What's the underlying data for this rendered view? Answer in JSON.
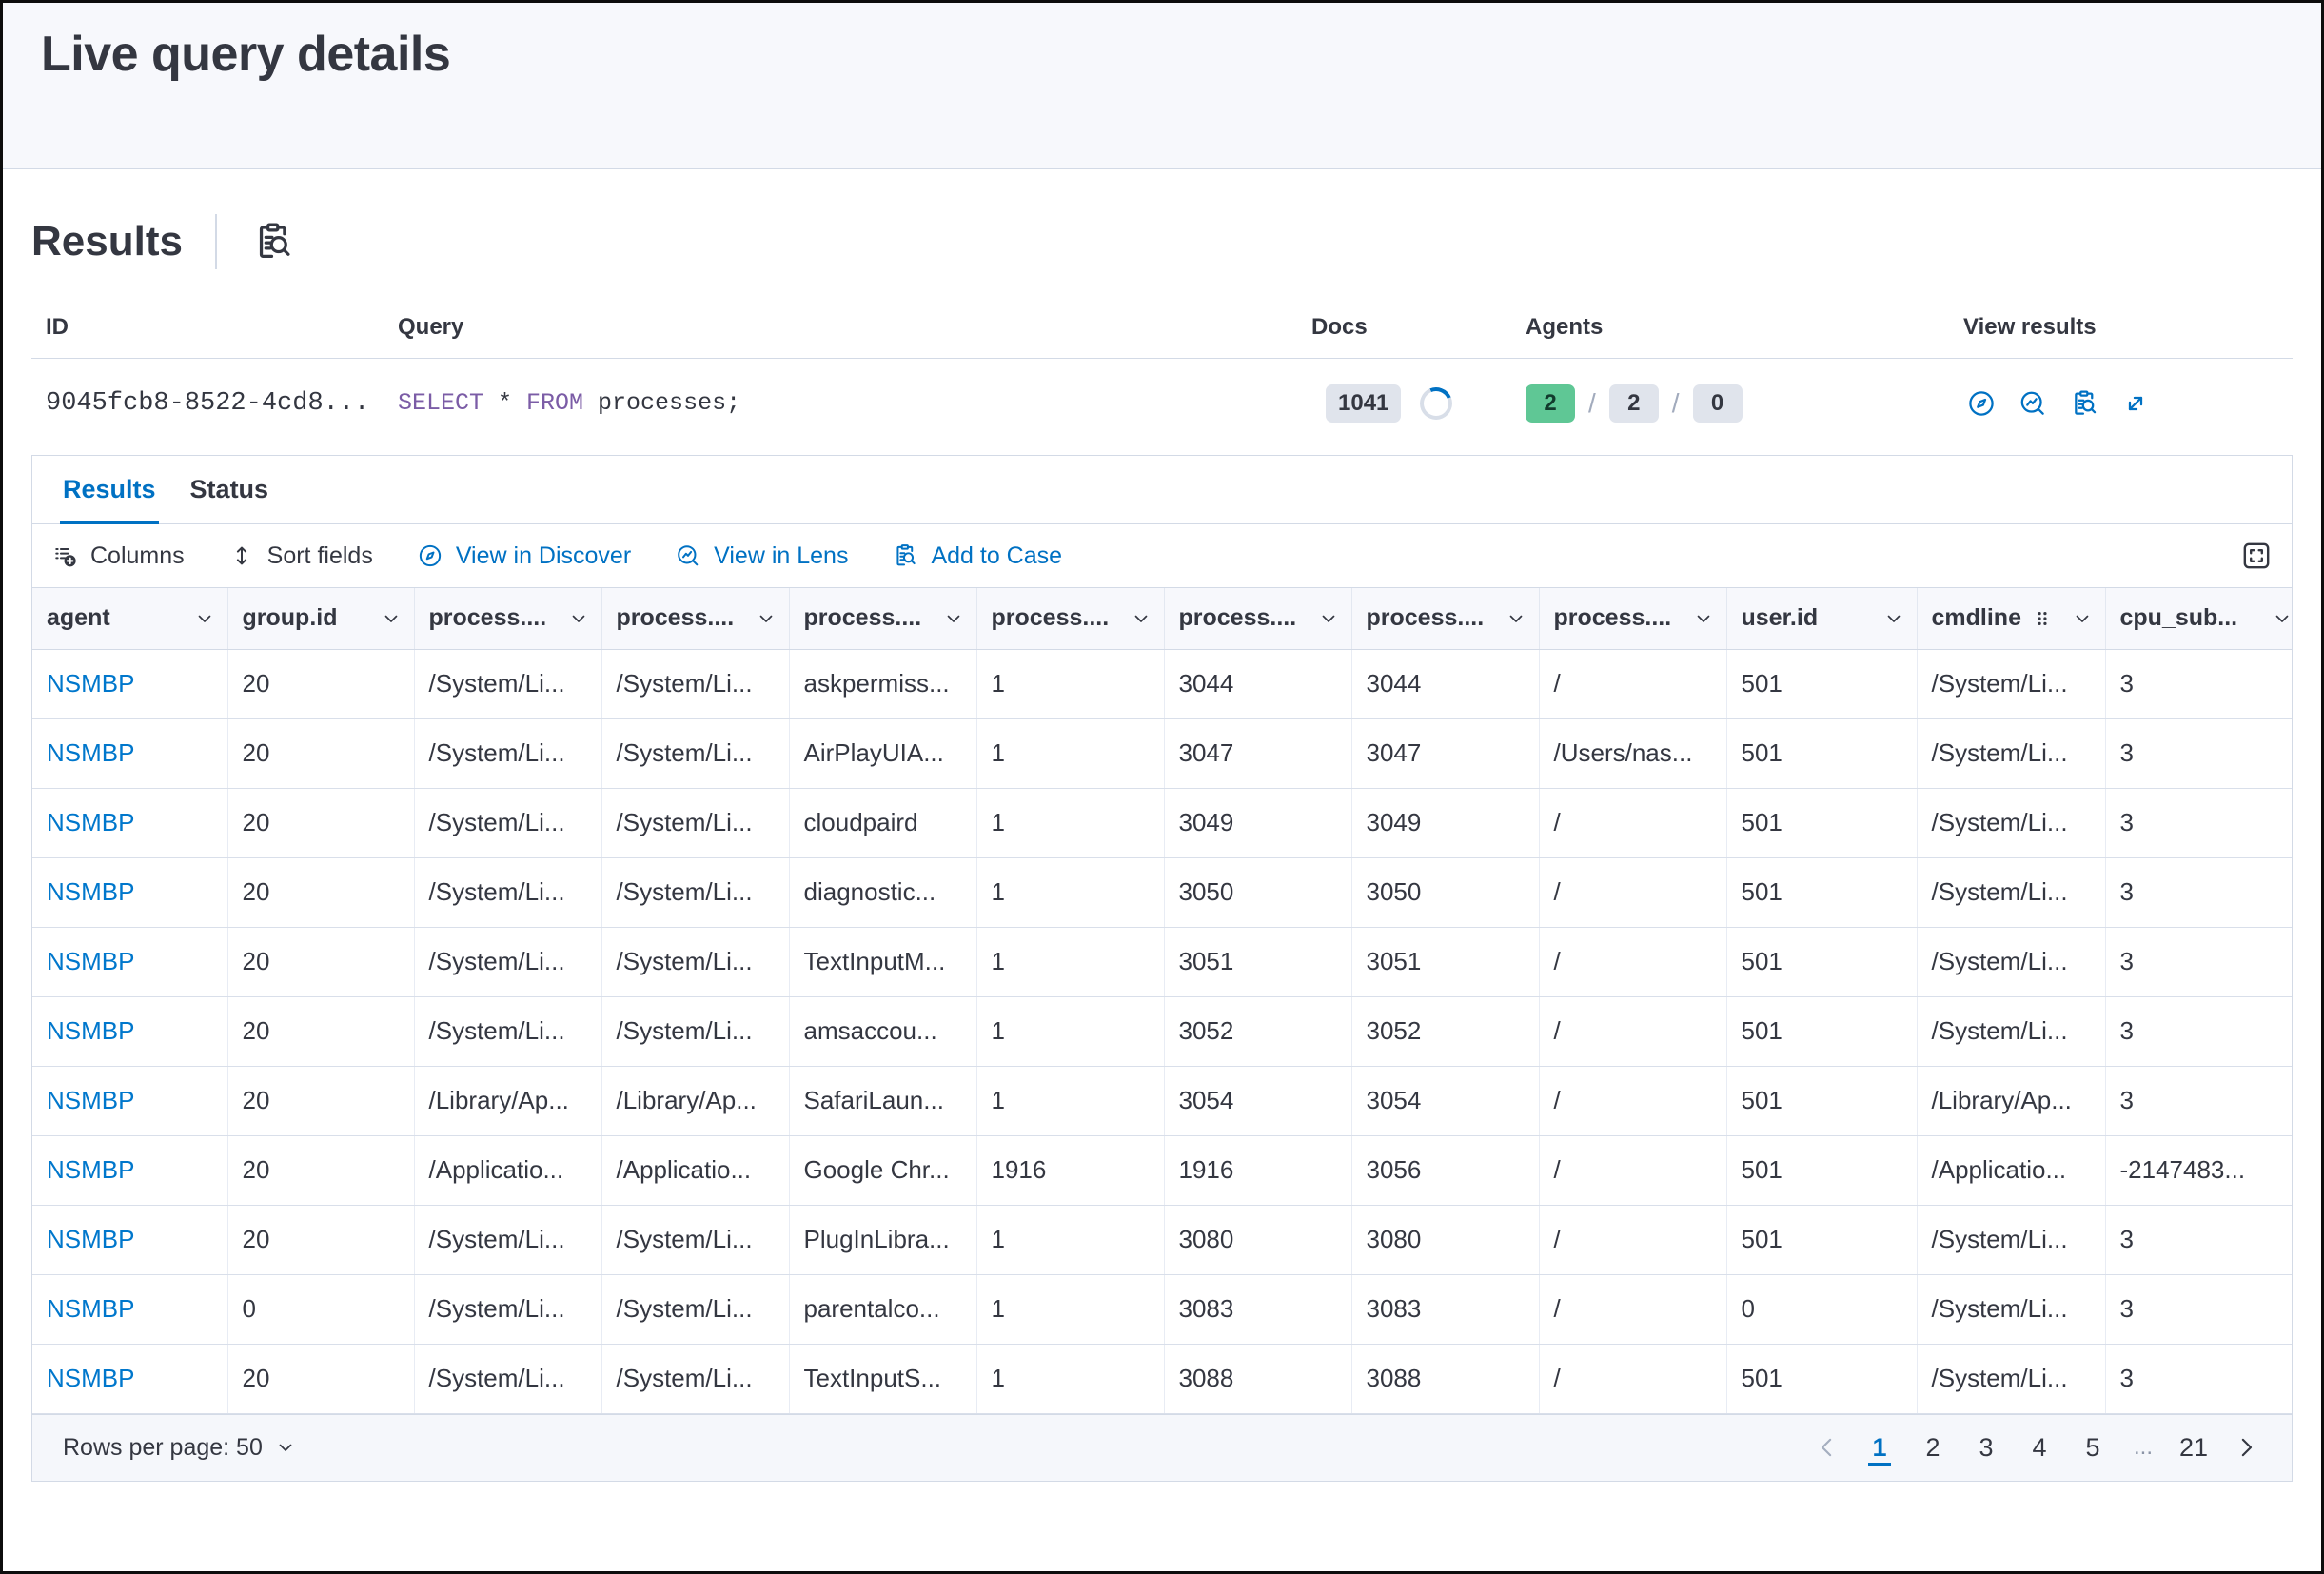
{
  "page": {
    "title": "Live query details"
  },
  "results_section": {
    "heading": "Results",
    "heading_icon": "inspect-icon",
    "summary_table": {
      "columns": [
        "ID",
        "Query",
        "Docs",
        "Agents",
        "View results"
      ],
      "row": {
        "id": "9045fcb8-8522-4cd8...",
        "query": {
          "kw1": "SELECT",
          "mid": " * ",
          "kw2": "FROM",
          "rest": " processes;"
        },
        "docs_count": "1041",
        "agents": {
          "success": "2",
          "total": "2",
          "failed": "0",
          "separator": "/"
        },
        "view_results_icons": [
          {
            "icon": "discover-compass",
            "name": "view-in-discover-button"
          },
          {
            "icon": "lens",
            "name": "view-in-lens-button"
          },
          {
            "icon": "inspect",
            "name": "inspect-results-button"
          },
          {
            "icon": "expand-diagonal",
            "name": "expand-results-button"
          }
        ]
      }
    }
  },
  "tabs": [
    {
      "label": "Results",
      "active": true
    },
    {
      "label": "Status",
      "active": false
    }
  ],
  "toolbar": {
    "columns_label": "Columns",
    "sort_fields_label": "Sort fields",
    "view_in_discover_label": "View in Discover",
    "view_in_lens_label": "View in Lens",
    "add_to_case_label": "Add to Case",
    "fullscreen_icon": "fullscreen-icon"
  },
  "grid": {
    "headers": [
      {
        "label": "agent"
      },
      {
        "label": "group.id"
      },
      {
        "label": "process...."
      },
      {
        "label": "process...."
      },
      {
        "label": "process...."
      },
      {
        "label": "process...."
      },
      {
        "label": "process...."
      },
      {
        "label": "process...."
      },
      {
        "label": "process...."
      },
      {
        "label": "user.id"
      },
      {
        "label": "cmdline",
        "extra_icon": "drag-dots"
      },
      {
        "label": "cpu_sub..."
      }
    ],
    "rows": [
      [
        "NSMBP",
        "20",
        "/System/Li...",
        "/System/Li...",
        "askpermiss...",
        "1",
        "3044",
        "3044",
        "/",
        "501",
        "/System/Li...",
        "3"
      ],
      [
        "NSMBP",
        "20",
        "/System/Li...",
        "/System/Li...",
        "AirPlayUIA...",
        "1",
        "3047",
        "3047",
        "/Users/nas...",
        "501",
        "/System/Li...",
        "3"
      ],
      [
        "NSMBP",
        "20",
        "/System/Li...",
        "/System/Li...",
        "cloudpaird",
        "1",
        "3049",
        "3049",
        "/",
        "501",
        "/System/Li...",
        "3"
      ],
      [
        "NSMBP",
        "20",
        "/System/Li...",
        "/System/Li...",
        "diagnostic...",
        "1",
        "3050",
        "3050",
        "/",
        "501",
        "/System/Li...",
        "3"
      ],
      [
        "NSMBP",
        "20",
        "/System/Li...",
        "/System/Li...",
        "TextInputM...",
        "1",
        "3051",
        "3051",
        "/",
        "501",
        "/System/Li...",
        "3"
      ],
      [
        "NSMBP",
        "20",
        "/System/Li...",
        "/System/Li...",
        "amsaccou...",
        "1",
        "3052",
        "3052",
        "/",
        "501",
        "/System/Li...",
        "3"
      ],
      [
        "NSMBP",
        "20",
        "/Library/Ap...",
        "/Library/Ap...",
        "SafariLaun...",
        "1",
        "3054",
        "3054",
        "/",
        "501",
        "/Library/Ap...",
        "3"
      ],
      [
        "NSMBP",
        "20",
        "/Applicatio...",
        "/Applicatio...",
        "Google Chr...",
        "1916",
        "1916",
        "3056",
        "/",
        "501",
        "/Applicatio...",
        "-2147483..."
      ],
      [
        "NSMBP",
        "20",
        "/System/Li...",
        "/System/Li...",
        "PlugInLibra...",
        "1",
        "3080",
        "3080",
        "/",
        "501",
        "/System/Li...",
        "3"
      ],
      [
        "NSMBP",
        "0",
        "/System/Li...",
        "/System/Li...",
        "parentalco...",
        "1",
        "3083",
        "3083",
        "/",
        "0",
        "/System/Li...",
        "3"
      ],
      [
        "NSMBP",
        "20",
        "/System/Li...",
        "/System/Li...",
        "TextInputS...",
        "1",
        "3088",
        "3088",
        "/",
        "501",
        "/System/Li...",
        "3"
      ]
    ]
  },
  "footer": {
    "rows_per_page_label": "Rows per page: 50",
    "pages": [
      "1",
      "2",
      "3",
      "4",
      "5",
      "...",
      "21"
    ],
    "current_page": "1"
  },
  "colors": {
    "primary_blue": "#0071c3",
    "link_blue": "#0077cc",
    "text": "#343741",
    "border": "#d3dae6",
    "header_bg": "#f7f8fc",
    "badge_green": "#5fc795",
    "badge_gray": "#e0e4ec",
    "sql_keyword_purple": "#7b5ca6"
  }
}
